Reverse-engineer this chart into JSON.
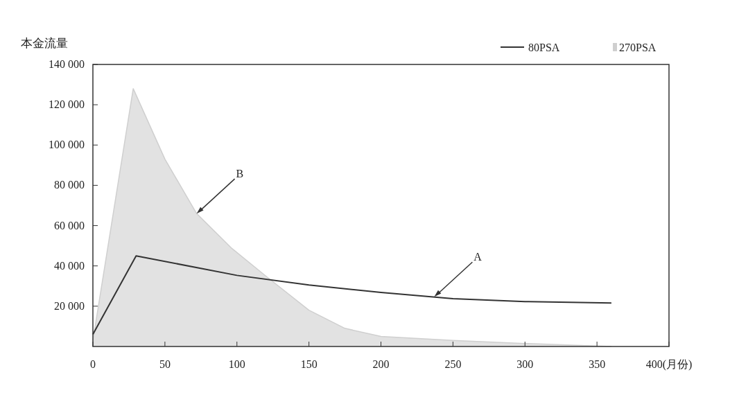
{
  "chart_data": {
    "type": "line",
    "ylabel": "本金流量",
    "xlim": [
      0,
      400
    ],
    "ylim": [
      0,
      140000
    ],
    "xticks": [
      0,
      50,
      100,
      150,
      200,
      250,
      300,
      350,
      {
        "value": 400,
        "label": "400(月份)"
      }
    ],
    "yticks": [
      {
        "value": 20000,
        "label": "20 000"
      },
      {
        "value": 40000,
        "label": "40 000"
      },
      {
        "value": 60000,
        "label": "60 000"
      },
      {
        "value": 80000,
        "label": "80 000"
      },
      {
        "value": 100000,
        "label": "100 000"
      },
      {
        "value": 120000,
        "label": "120 000"
      },
      {
        "value": 140000,
        "label": "140 000"
      }
    ],
    "legend": "top right",
    "grid": false,
    "series": [
      {
        "name": "270PSA",
        "type": "area",
        "color": "#cfcfcf",
        "x": [
          0,
          28,
          50,
          72,
          96,
          120,
          150,
          175,
          200,
          250,
          300,
          360
        ],
        "values": [
          3000,
          128000,
          93000,
          66000,
          49000,
          35000,
          18000,
          9000,
          5000,
          3000,
          1500,
          0
        ]
      },
      {
        "name": "80PSA",
        "color": "#333333",
        "x": [
          0,
          30,
          100,
          150,
          200,
          250,
          300,
          360
        ],
        "values": [
          6000,
          45000,
          35300,
          30500,
          26800,
          23700,
          22300,
          21600
        ]
      }
    ],
    "annotations": [
      {
        "text": "A",
        "x": 237,
        "y": 24700
      },
      {
        "text": "B",
        "x": 72,
        "y": 66000
      }
    ]
  }
}
